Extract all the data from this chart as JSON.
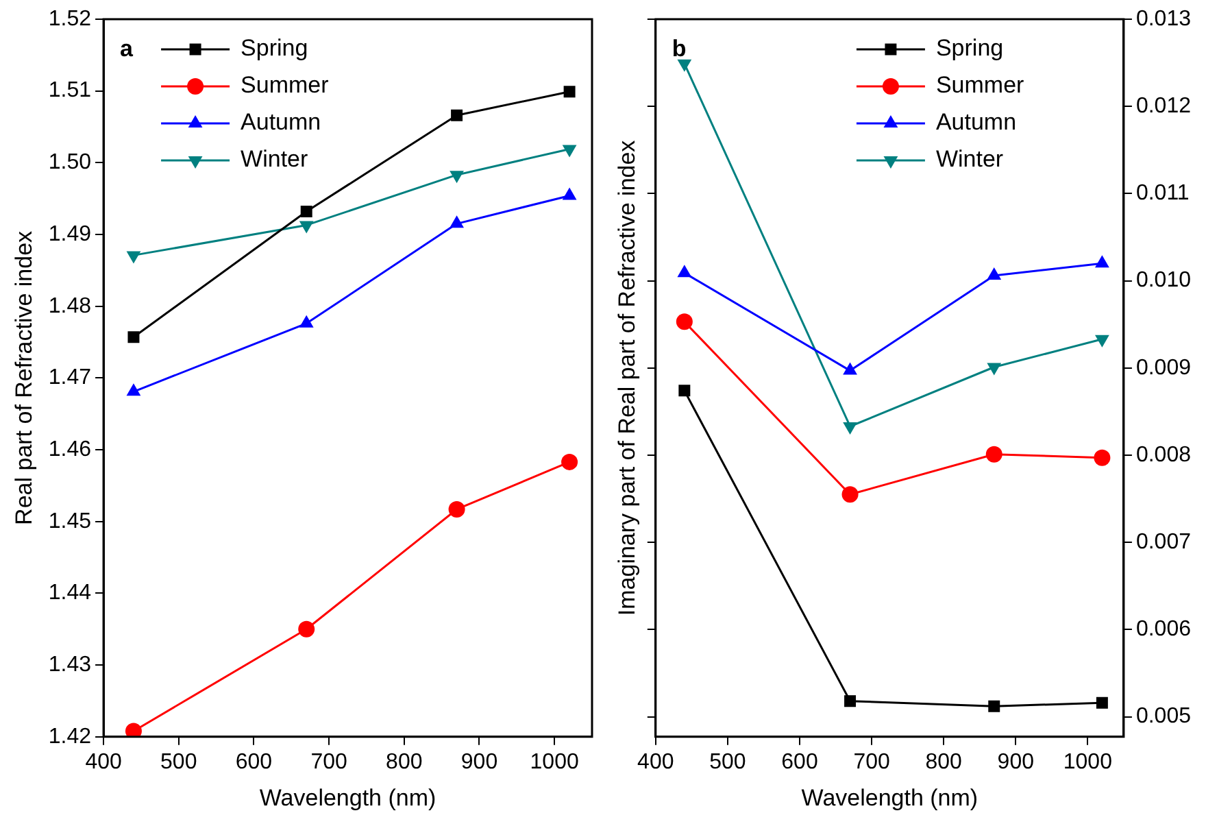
{
  "chart_data": [
    {
      "type": "line",
      "xlabel": "Wavelength (nm)",
      "ylabel": "Real part of Refractive index",
      "annotations": [
        "a"
      ],
      "x": [
        440,
        670,
        870,
        1020
      ],
      "xlim": [
        400,
        1050
      ],
      "xticks": [
        400,
        500,
        600,
        700,
        800,
        900,
        1000
      ],
      "ylim": [
        1.42,
        1.52
      ],
      "yticks": [
        1.42,
        1.43,
        1.44,
        1.45,
        1.46,
        1.47,
        1.48,
        1.49,
        {
          "value": 1.5,
          "label": "1.50"
        },
        1.51,
        1.52
      ],
      "legend": "top left",
      "grid": false,
      "line_style": "solid",
      "series": [
        {
          "name": "Spring",
          "color": "#000000",
          "marker": "square",
          "values": [
            1.4757,
            1.4932,
            1.5066,
            1.5099
          ]
        },
        {
          "name": "Summer",
          "color": "#ff0000",
          "marker": "circle",
          "values": [
            1.4208,
            1.435,
            1.4517,
            1.4583
          ]
        },
        {
          "name": "Autumn",
          "color": "#0000ff",
          "marker": "triangle",
          "values": [
            1.4681,
            1.4776,
            1.4915,
            1.4954
          ]
        },
        {
          "name": "Winter",
          "color": "#008080",
          "marker": "triangle-down",
          "values": [
            1.4871,
            1.4913,
            1.4983,
            1.5019
          ]
        }
      ]
    },
    {
      "type": "line",
      "xlabel": "Wavelength (nm)",
      "ylabel": "Imaginary part of Real part of Refractive index",
      "annotations": [
        "b"
      ],
      "x": [
        440,
        670,
        870,
        1020
      ],
      "xlim": [
        400,
        1050
      ],
      "xticks": [
        400,
        500,
        600,
        700,
        800,
        900,
        1000
      ],
      "y2lim": [
        0.00477,
        0.013
      ],
      "y2ticks": [
        0.005,
        0.006,
        0.007,
        0.008,
        0.009,
        {
          "value": 0.01,
          "label": "0.010"
        },
        0.011,
        0.012,
        0.013
      ],
      "legend": "top right",
      "grid": false,
      "line_style": "solid",
      "series": [
        {
          "name": "Spring",
          "color": "#000000",
          "marker": "square",
          "axis": "y2",
          "values": [
            0.00874,
            0.00518,
            0.00512,
            0.00516
          ]
        },
        {
          "name": "Summer",
          "color": "#ff0000",
          "marker": "circle",
          "axis": "y2",
          "values": [
            0.00953,
            0.00755,
            0.00801,
            0.00797
          ]
        },
        {
          "name": "Autumn",
          "color": "#0000ff",
          "marker": "triangle",
          "axis": "y2",
          "values": [
            0.01009,
            0.00897,
            0.01006,
            0.0102
          ]
        },
        {
          "name": "Winter",
          "color": "#008080",
          "marker": "triangle-down",
          "axis": "y2",
          "values": [
            0.01249,
            0.00833,
            0.00901,
            0.00933
          ]
        }
      ]
    }
  ]
}
